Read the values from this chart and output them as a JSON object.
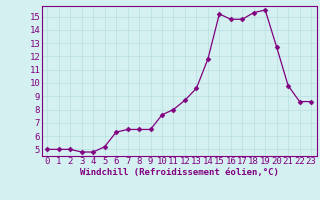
{
  "x": [
    0,
    1,
    2,
    3,
    4,
    5,
    6,
    7,
    8,
    9,
    10,
    11,
    12,
    13,
    14,
    15,
    16,
    17,
    18,
    19,
    20,
    21,
    22,
    23
  ],
  "y": [
    5.0,
    5.0,
    5.0,
    4.8,
    4.8,
    5.2,
    6.3,
    6.5,
    6.5,
    6.5,
    7.6,
    8.0,
    8.7,
    9.6,
    11.8,
    15.2,
    14.8,
    14.8,
    15.3,
    15.5,
    12.7,
    9.8,
    8.6,
    8.6
  ],
  "xlabel": "Windchill (Refroidissement éolien,°C)",
  "xlim": [
    -0.5,
    23.5
  ],
  "ylim": [
    4.5,
    15.8
  ],
  "yticks": [
    5,
    6,
    7,
    8,
    9,
    10,
    11,
    12,
    13,
    14,
    15
  ],
  "xticks": [
    0,
    1,
    2,
    3,
    4,
    5,
    6,
    7,
    8,
    9,
    10,
    11,
    12,
    13,
    14,
    15,
    16,
    17,
    18,
    19,
    20,
    21,
    22,
    23
  ],
  "line_color": "#800080",
  "marker_color": "#800080",
  "bg_color": "#d5f0f0",
  "grid_color": "#b8e0e0",
  "axis_color": "#800080",
  "tick_color": "#800080",
  "label_color": "#800080",
  "font_size": 6.5,
  "xlabel_fontsize": 6.5,
  "marker_size": 2.5,
  "linewidth": 0.9
}
